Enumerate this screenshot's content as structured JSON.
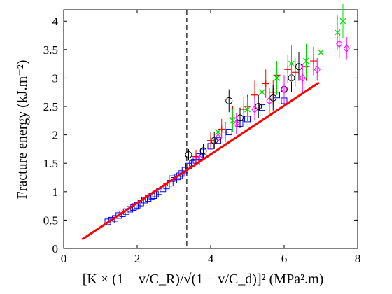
{
  "chart_data": {
    "type": "scatter",
    "title": "",
    "xlabel": "[K × (1 − v/C_R)/√(1 − v/C_d)]² (MPa².m)",
    "ylabel": "Fracture energy (kJ.m⁻²)",
    "xlim": [
      0,
      8
    ],
    "ylim": [
      0,
      4.2
    ],
    "xticks": [
      0,
      2,
      4,
      6,
      8
    ],
    "yticks": [
      0,
      0.5,
      1,
      1.5,
      2,
      2.5,
      3,
      3.5,
      4
    ],
    "grid": false,
    "legend": "none",
    "vline": {
      "x": 3.35,
      "style": "dashed",
      "color": "#000000"
    },
    "fit_line": {
      "x": [
        0.5,
        6.95
      ],
      "y": [
        0.16,
        2.92
      ],
      "color": "#ff0000"
    },
    "series": [
      {
        "marker": "square",
        "color": "#0000ff",
        "points": [
          [
            1.2,
            0.47
          ],
          [
            1.3,
            0.5
          ],
          [
            1.4,
            0.53
          ],
          [
            1.5,
            0.58
          ],
          [
            1.6,
            0.61
          ],
          [
            1.7,
            0.65
          ],
          [
            1.8,
            0.69
          ],
          [
            1.9,
            0.72
          ],
          [
            2.0,
            0.76
          ],
          [
            2.1,
            0.8
          ],
          [
            2.2,
            0.85
          ],
          [
            2.3,
            0.88
          ],
          [
            2.4,
            0.92
          ],
          [
            2.5,
            0.96
          ],
          [
            2.6,
            1.0
          ],
          [
            2.7,
            1.05
          ],
          [
            2.8,
            1.1
          ],
          [
            2.9,
            1.15
          ],
          [
            3.0,
            1.2
          ],
          [
            3.1,
            1.26
          ],
          [
            3.2,
            1.32
          ],
          [
            3.3,
            1.38
          ],
          [
            3.4,
            1.45
          ],
          [
            3.5,
            1.5
          ],
          [
            3.6,
            1.55
          ],
          [
            3.7,
            1.62
          ],
          [
            3.8,
            1.7
          ],
          [
            4.0,
            1.8
          ],
          [
            4.2,
            1.9
          ],
          [
            4.5,
            2.05
          ],
          [
            4.8,
            2.2
          ],
          [
            5.0,
            2.28
          ],
          [
            5.4,
            2.48
          ],
          [
            5.8,
            2.7
          ],
          [
            6.0,
            2.6
          ],
          [
            2.95,
            1.23
          ],
          [
            3.15,
            1.28
          ],
          [
            2.45,
            0.93
          ],
          [
            1.95,
            0.74
          ],
          [
            3.55,
            1.52
          ]
        ]
      },
      {
        "marker": "plus",
        "color": "#ff0000",
        "points": [
          [
            3.6,
            1.62
          ],
          [
            4.0,
            1.9
          ],
          [
            4.3,
            2.1
          ],
          [
            4.6,
            2.3
          ],
          [
            4.9,
            2.45
          ],
          [
            5.2,
            2.7
          ],
          [
            5.5,
            2.9
          ],
          [
            5.8,
            3.05
          ],
          [
            6.1,
            3.15
          ],
          [
            6.3,
            3.1
          ],
          [
            6.6,
            3.2
          ],
          [
            6.8,
            3.3
          ],
          [
            4.4,
            2.05
          ],
          [
            5.0,
            2.5
          ],
          [
            5.7,
            2.75
          ]
        ],
        "errors": [
          0.12,
          0.15,
          0.18,
          0.2,
          0.22,
          0.25,
          0.25,
          0.25,
          0.25,
          0.25,
          0.25,
          0.25,
          0.18,
          0.2,
          0.22
        ]
      },
      {
        "marker": "circle",
        "color": "#000000",
        "points": [
          [
            3.4,
            1.65
          ],
          [
            3.8,
            1.72
          ],
          [
            4.1,
            1.9
          ],
          [
            4.5,
            2.6
          ],
          [
            4.8,
            2.3
          ],
          [
            5.3,
            2.5
          ],
          [
            5.7,
            2.65
          ],
          [
            6.0,
            2.8
          ],
          [
            6.2,
            3.0
          ],
          [
            6.4,
            3.2
          ]
        ],
        "errors": [
          0.1,
          0.12,
          0.15,
          0.2,
          0.18,
          0.2,
          0.22,
          0.25,
          0.25,
          0.25
        ]
      },
      {
        "marker": "x",
        "color": "#00dd00",
        "points": [
          [
            4.2,
            2.05
          ],
          [
            4.6,
            2.25
          ],
          [
            5.0,
            2.45
          ],
          [
            5.4,
            2.75
          ],
          [
            5.8,
            3.0
          ],
          [
            6.2,
            3.25
          ],
          [
            6.6,
            3.3
          ],
          [
            7.0,
            3.45
          ],
          [
            7.45,
            3.8
          ],
          [
            7.6,
            4.0
          ]
        ],
        "errors": [
          0.18,
          0.2,
          0.22,
          0.3,
          0.3,
          0.32,
          0.3,
          0.28,
          0.3,
          0.3
        ]
      },
      {
        "marker": "diamond",
        "color": "#ff00ff",
        "points": [
          [
            3.7,
            1.58
          ],
          [
            4.2,
            1.95
          ],
          [
            4.7,
            2.2
          ],
          [
            5.2,
            2.45
          ],
          [
            5.6,
            2.6
          ],
          [
            6.0,
            2.8
          ],
          [
            6.5,
            3.0
          ],
          [
            6.9,
            3.15
          ],
          [
            7.5,
            3.6
          ],
          [
            7.7,
            3.52
          ]
        ],
        "errors": [
          0.1,
          0.15,
          0.18,
          0.2,
          0.22,
          0.25,
          0.25,
          0.2,
          0.25,
          0.2
        ]
      }
    ]
  }
}
